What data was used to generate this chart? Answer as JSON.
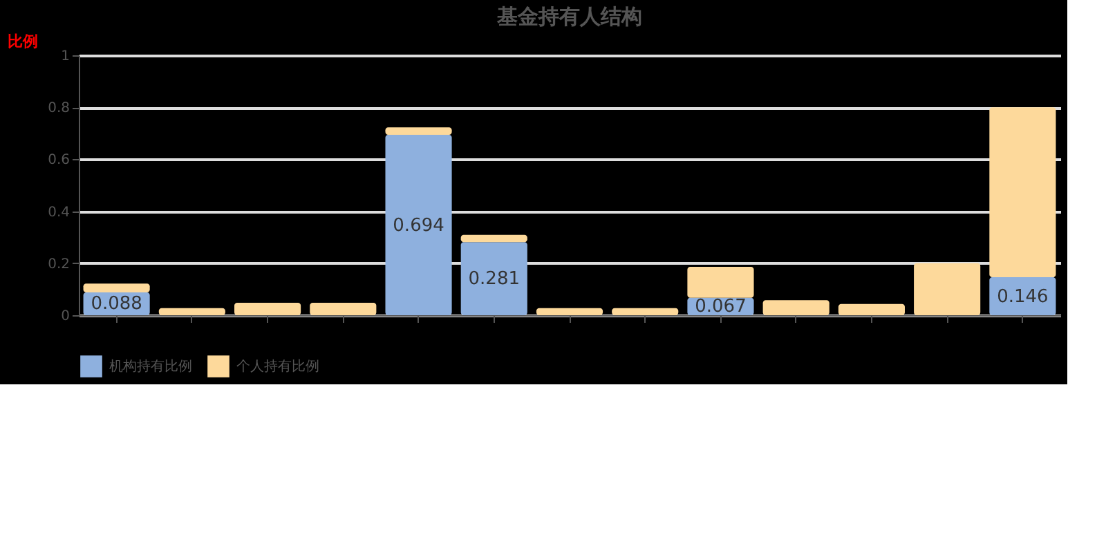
{
  "chart_data": {
    "type": "bar",
    "title": "基金持有人结构",
    "ylabel": "比例",
    "categories": [
      null,
      null,
      null,
      null,
      null,
      null,
      null,
      null,
      null,
      null,
      null,
      null,
      null
    ],
    "stacked": true,
    "series": [
      {
        "name": "机构持有比例",
        "color": "#8eb0de",
        "values": [
          0.088,
          0,
          0,
          0,
          0.694,
          0.281,
          0,
          0,
          0.067,
          0,
          0,
          0,
          0.146
        ],
        "value_labels": [
          "0.088",
          null,
          null,
          null,
          "0.694",
          "0.281",
          null,
          null,
          "0.067",
          null,
          null,
          null,
          "0.146"
        ]
      },
      {
        "name": "个人持有比例",
        "color": "#fdd99b",
        "values": [
          0.034,
          0.027,
          0.048,
          0.048,
          0.029,
          0.028,
          0.027,
          0.027,
          0.119,
          0.058,
          0.043,
          0.2,
          0.654
        ]
      }
    ],
    "ylim": [
      0,
      1
    ],
    "yticks": [
      0,
      0.2,
      0.4,
      0.6,
      0.8,
      1
    ],
    "grid": "y",
    "legend": "bottom"
  }
}
